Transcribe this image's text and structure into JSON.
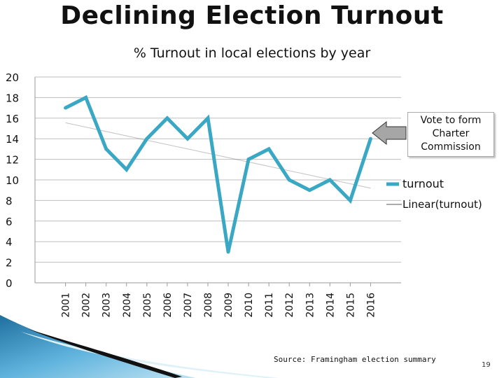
{
  "slide": {
    "title": "Declining Election Turnout",
    "source": "Source: Framingham election summary",
    "page_number": "19"
  },
  "callout": {
    "text": "Vote to form Charter Commission"
  },
  "colors": {
    "series": "#3aa7c4",
    "trend": "#555555",
    "grid": "#bfbfbf",
    "arrow": "#a6a6a6"
  },
  "chart_data": {
    "type": "line",
    "title": "% Turnout in local elections by year",
    "categories": [
      "2001",
      "2002",
      "2003",
      "2004",
      "2005",
      "2006",
      "2007",
      "2008",
      "2009",
      "2010",
      "2011",
      "2012",
      "2013",
      "2014",
      "2015",
      "2016"
    ],
    "series": [
      {
        "name": "turnout",
        "values": [
          17,
          18,
          13,
          11,
          14,
          16,
          14,
          16,
          3,
          12,
          13,
          10,
          9,
          10,
          8,
          14
        ]
      }
    ],
    "trendline": {
      "name": "Linear(turnout)",
      "type": "linear"
    },
    "ylim": [
      0,
      20
    ],
    "yticks": [
      "0",
      "2",
      "4",
      "6",
      "8",
      "10",
      "12",
      "14",
      "16",
      "18",
      "20"
    ],
    "legend": [
      "turnout",
      "Linear(turnout)"
    ],
    "legend_position": "right",
    "grid": true
  }
}
